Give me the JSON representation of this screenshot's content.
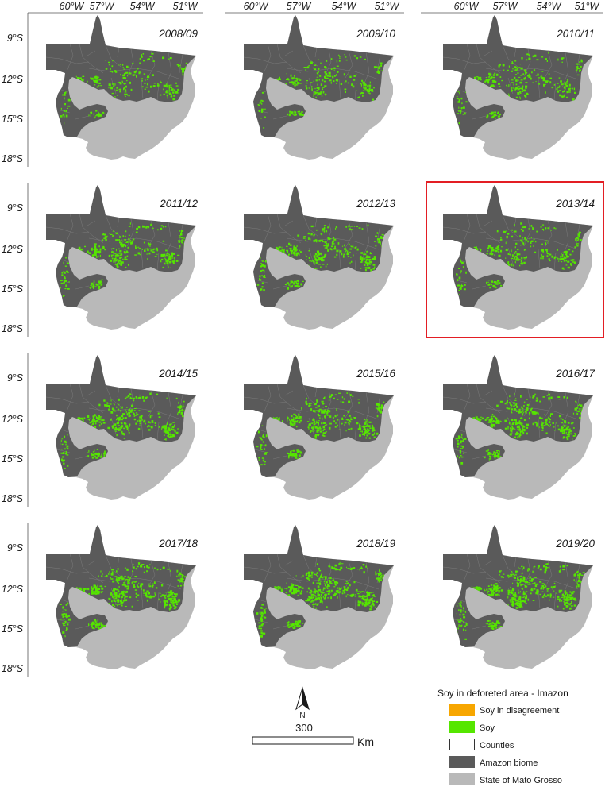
{
  "axes": {
    "longitude_labels": [
      "60°W",
      "57°W",
      "54°W",
      "51°W"
    ],
    "latitude_labels": [
      "9°S",
      "12°S",
      "15°S",
      "18°S"
    ]
  },
  "panels": [
    {
      "title": "2008/09",
      "highlighted": false
    },
    {
      "title": "2009/10",
      "highlighted": false
    },
    {
      "title": "2010/11",
      "highlighted": false
    },
    {
      "title": "2011/12",
      "highlighted": false
    },
    {
      "title": "2012/13",
      "highlighted": false
    },
    {
      "title": "2013/14",
      "highlighted": true
    },
    {
      "title": "2014/15",
      "highlighted": false
    },
    {
      "title": "2015/16",
      "highlighted": false
    },
    {
      "title": "2016/17",
      "highlighted": false
    },
    {
      "title": "2017/18",
      "highlighted": false
    },
    {
      "title": "2018/19",
      "highlighted": false
    },
    {
      "title": "2019/20",
      "highlighted": false
    }
  ],
  "legend": {
    "title": "Soy in deforeted area - Imazon",
    "items": [
      {
        "label": "Soy in disagreement",
        "color": "#f7a600"
      },
      {
        "label": "Soy",
        "color": "#55e600"
      },
      {
        "label": "Counties",
        "color": "#ffffff"
      },
      {
        "label": "Amazon biome",
        "color": "#5a5a5a"
      },
      {
        "label": "State of Mato Grosso",
        "color": "#b9b9b9"
      }
    ]
  },
  "north_arrow": {
    "label": "N"
  },
  "scale_bar": {
    "value": "300",
    "unit": "Km"
  },
  "colors": {
    "highlight_frame": "#e31e24",
    "axis_line": "#555555",
    "county_line": "#808080"
  }
}
